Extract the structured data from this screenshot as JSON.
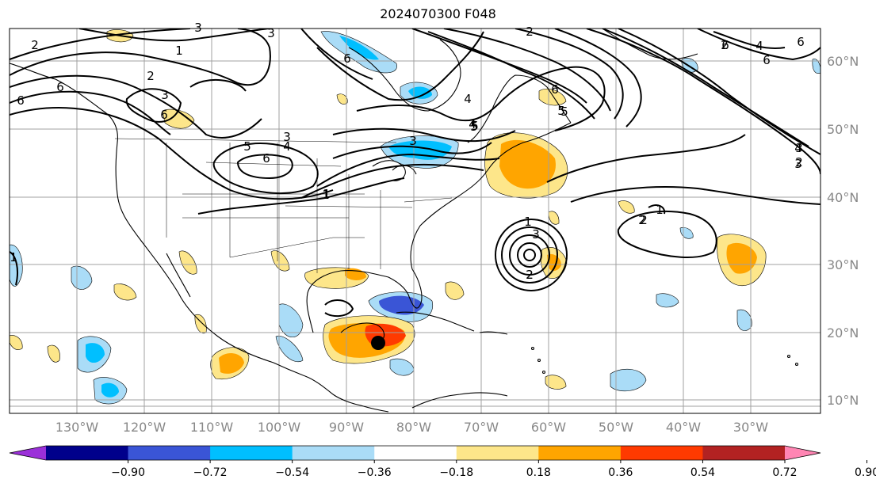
{
  "title": "2024070300 F048",
  "lat_labels": [
    "60°N",
    "50°N",
    "40°N",
    "30°N",
    "20°N",
    "10°N"
  ],
  "lon_labels": [
    "130°W",
    "120°W",
    "110°W",
    "100°W",
    "90°W",
    "80°W",
    "70°W",
    "60°W",
    "50°W",
    "40°W",
    "30°W"
  ],
  "colorbar": {
    "ticks": [
      "−0.90",
      "−0.72",
      "−0.54",
      "−0.36",
      "−0.18",
      "0.18",
      "0.36",
      "0.54",
      "0.72",
      "0.90"
    ],
    "colors": [
      "#9b30d9",
      "#00008b",
      "#3a55d6",
      "#00bfff",
      "#aadcf7",
      "#ffffff",
      "#fde68a",
      "#ffa500",
      "#ff3a00",
      "#b22222",
      "#ff85b3"
    ],
    "under_color": "#9b30d9",
    "over_color": "#ff85b3"
  },
  "contour_labels": [
    "2",
    "1",
    "2",
    "3",
    "6",
    "5",
    "6",
    "1",
    "3",
    "4",
    "4",
    "3",
    "5",
    "6",
    "5",
    "6",
    "2",
    "3",
    "4",
    "6",
    "6",
    "5",
    "3",
    "2",
    "1",
    "2",
    "3",
    "4",
    "1",
    "2",
    "1",
    "2",
    "3",
    "6",
    "4",
    "5",
    "6",
    "6",
    "3",
    "2",
    "1",
    "2"
  ],
  "colors": {
    "grid": "#a0a0a0",
    "coast": "#000000",
    "contour": "#000000"
  }
}
